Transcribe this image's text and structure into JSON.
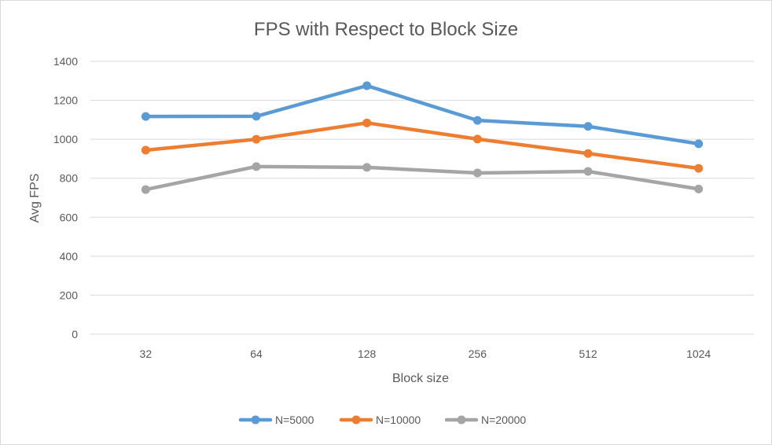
{
  "chart_data": {
    "type": "line",
    "title": "FPS with Respect to Block Size",
    "xlabel": "Block size",
    "ylabel": "Avg FPS",
    "categories": [
      "32",
      "64",
      "128",
      "256",
      "512",
      "1024"
    ],
    "ylim": [
      0,
      1400
    ],
    "yticks": [
      0,
      200,
      400,
      600,
      800,
      1000,
      1200,
      1400
    ],
    "grid": true,
    "legend_position": "bottom",
    "series": [
      {
        "name": "N=5000",
        "color": "#5b9bd5",
        "values": [
          1117,
          1118,
          1275,
          1097,
          1066,
          977
        ]
      },
      {
        "name": "N=10000",
        "color": "#ed7d31",
        "values": [
          944,
          1000,
          1084,
          1001,
          927,
          851
        ]
      },
      {
        "name": "N=20000",
        "color": "#a5a5a5",
        "values": [
          742,
          860,
          856,
          827,
          835,
          745
        ]
      }
    ]
  }
}
